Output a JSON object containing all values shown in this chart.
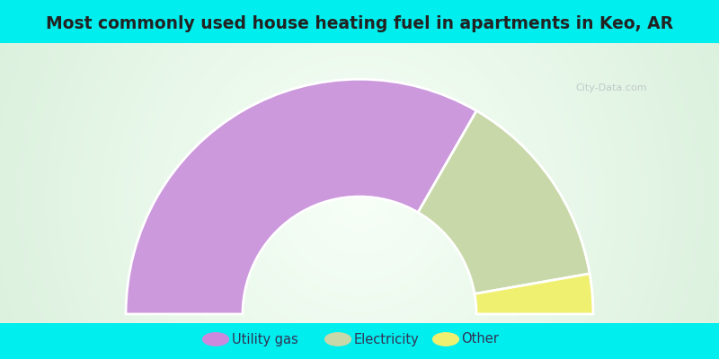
{
  "title": "Most commonly used house heating fuel in apartments in Keo, AR",
  "title_fontsize": 13.5,
  "title_color": "#222222",
  "background_color": "#00EEEE",
  "slices": [
    {
      "label": "Utility gas",
      "value": 66.7,
      "color": "#cc99dd"
    },
    {
      "label": "Electricity",
      "value": 27.8,
      "color": "#c8d8a8"
    },
    {
      "label": "Other",
      "value": 5.5,
      "color": "#f0f070"
    }
  ],
  "legend_marker_colors": [
    "#cc88dd",
    "#c8d8a8",
    "#f0f070"
  ],
  "legend_labels": [
    "Utility gas",
    "Electricity",
    "Other"
  ],
  "legend_fontsize": 10.5,
  "legend_text_color": "#333355",
  "watermark": "City-Data.com"
}
